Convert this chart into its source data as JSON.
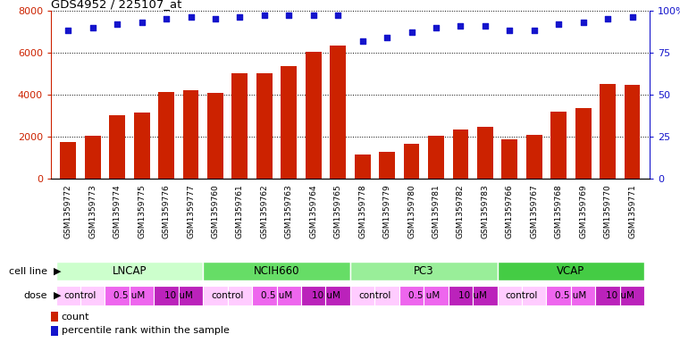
{
  "title": "GDS4952 / 225107_at",
  "samples": [
    "GSM1359772",
    "GSM1359773",
    "GSM1359774",
    "GSM1359775",
    "GSM1359776",
    "GSM1359777",
    "GSM1359760",
    "GSM1359761",
    "GSM1359762",
    "GSM1359763",
    "GSM1359764",
    "GSM1359765",
    "GSM1359778",
    "GSM1359779",
    "GSM1359780",
    "GSM1359781",
    "GSM1359782",
    "GSM1359783",
    "GSM1359766",
    "GSM1359767",
    "GSM1359768",
    "GSM1359769",
    "GSM1359770",
    "GSM1359771"
  ],
  "counts": [
    1750,
    2050,
    3020,
    3150,
    4150,
    4200,
    4080,
    5020,
    5020,
    5380,
    6040,
    6350,
    1150,
    1300,
    1680,
    2060,
    2340,
    2460,
    1900,
    2080,
    3190,
    3360,
    4500,
    4490
  ],
  "percentiles": [
    88,
    90,
    92,
    93,
    95,
    96,
    95,
    96,
    97,
    97,
    97,
    97,
    82,
    84,
    87,
    90,
    91,
    91,
    88,
    88,
    92,
    93,
    95,
    96
  ],
  "bar_color": "#cc2200",
  "dot_color": "#1414cc",
  "cell_lines": [
    {
      "name": "LNCAP",
      "start": 0,
      "end": 5,
      "color": "#ccffcc"
    },
    {
      "name": "NCIH660",
      "start": 6,
      "end": 11,
      "color": "#66dd66"
    },
    {
      "name": "PC3",
      "start": 12,
      "end": 17,
      "color": "#99ee99"
    },
    {
      "name": "VCAP",
      "start": 18,
      "end": 23,
      "color": "#44cc44"
    }
  ],
  "dose_labels": [
    "control",
    "control",
    "0.5 uM",
    "0.5 uM",
    "10 uM",
    "10 uM",
    "control",
    "control",
    "0.5 uM",
    "0.5 uM",
    "10 uM",
    "10 uM",
    "control",
    "control",
    "0.5 uM",
    "0.5 uM",
    "10 uM",
    "10 uM",
    "control",
    "control",
    "0.5 uM",
    "0.5 uM",
    "10 uM",
    "10 uM"
  ],
  "dose_colors": {
    "control": "#ffccff",
    "0.5 uM": "#ee66ee",
    "10 uM": "#bb22bb"
  },
  "dose_groups": [
    [
      0,
      1,
      "control"
    ],
    [
      2,
      3,
      "0.5 uM"
    ],
    [
      4,
      5,
      "10 uM"
    ],
    [
      6,
      7,
      "control"
    ],
    [
      8,
      9,
      "0.5 uM"
    ],
    [
      10,
      11,
      "10 uM"
    ],
    [
      12,
      13,
      "control"
    ],
    [
      14,
      15,
      "0.5 uM"
    ],
    [
      16,
      17,
      "10 uM"
    ],
    [
      18,
      19,
      "control"
    ],
    [
      20,
      21,
      "0.5 uM"
    ],
    [
      22,
      23,
      "10 uM"
    ]
  ],
  "yticks_left": [
    0,
    2000,
    4000,
    6000,
    8000
  ],
  "yticks_right": [
    0,
    25,
    50,
    75,
    100
  ],
  "ytick_right_labels": [
    "0",
    "25",
    "50",
    "75",
    "100%"
  ],
  "plot_bg": "#ffffff",
  "tick_bg": "#dddddd"
}
